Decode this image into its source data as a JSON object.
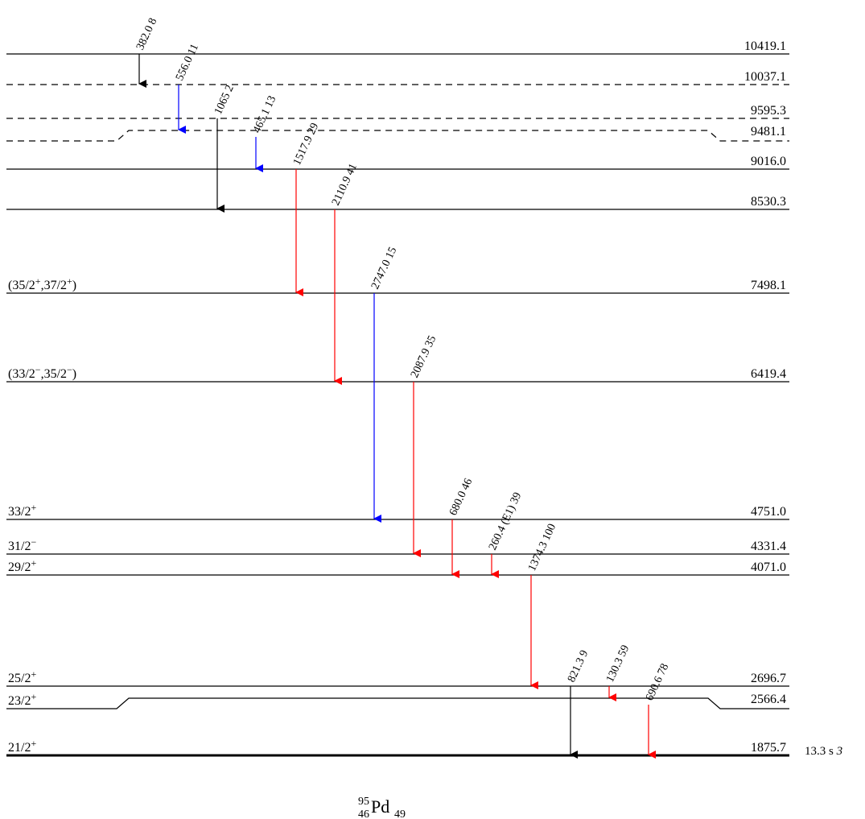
{
  "nucleus": {
    "mass": "95",
    "z": "46",
    "symbol": "Pd",
    "n": "49"
  },
  "levels": [
    {
      "energy": "10419.1",
      "spin": "",
      "style": "solid"
    },
    {
      "energy": "10037.1",
      "spin": "",
      "style": "dashed"
    },
    {
      "energy": "9595.3",
      "spin": "",
      "style": "dashed"
    },
    {
      "energy": "9481.1",
      "spin": "",
      "style": "dashed"
    },
    {
      "energy": "9016.0",
      "spin": "",
      "style": "solid"
    },
    {
      "energy": "8530.3",
      "spin": "",
      "style": "solid"
    },
    {
      "energy": "7498.1",
      "spin": "(35/2+,37/2+)",
      "style": "solid"
    },
    {
      "energy": "6419.4",
      "spin": "(33/2−,35/2−)",
      "style": "solid"
    },
    {
      "energy": "4751.0",
      "spin": "33/2+",
      "style": "solid"
    },
    {
      "energy": "4331.4",
      "spin": "31/2−",
      "style": "solid"
    },
    {
      "energy": "4071.0",
      "spin": "29/2+",
      "style": "solid"
    },
    {
      "energy": "2696.7",
      "spin": "25/2+",
      "style": "solid"
    },
    {
      "energy": "2566.4",
      "spin": "23/2+",
      "style": "solid"
    },
    {
      "energy": "1875.7",
      "spin": "21/2+",
      "style": "thick",
      "half_life": "13.3 s",
      "half_life_unc": "3"
    }
  ],
  "transitions": [
    {
      "energy": "382.0",
      "intensity": "8",
      "mult": "",
      "from": "10419.1",
      "to": "10037.1",
      "color": "#000000"
    },
    {
      "energy": "556.0",
      "intensity": "11",
      "mult": "",
      "from": "10037.1",
      "to": "9481.1",
      "color": "#0000ff"
    },
    {
      "energy": "1065",
      "intensity": "2",
      "mult": "",
      "from": "9595.3",
      "to": "8530.3",
      "color": "#000000"
    },
    {
      "energy": "465.1",
      "intensity": "13",
      "mult": "",
      "from": "9481.1",
      "to": "9016.0",
      "color": "#0000ff"
    },
    {
      "energy": "1517.9",
      "intensity": "29",
      "mult": "",
      "from": "9016.0",
      "to": "7498.1",
      "color": "#ff0000"
    },
    {
      "energy": "2110.9",
      "intensity": "41",
      "mult": "",
      "from": "8530.3",
      "to": "6419.4",
      "color": "#ff0000"
    },
    {
      "energy": "2747.0",
      "intensity": "15",
      "mult": "",
      "from": "7498.1",
      "to": "4751.0",
      "color": "#0000ff"
    },
    {
      "energy": "2087.9",
      "intensity": "35",
      "mult": "",
      "from": "6419.4",
      "to": "4331.4",
      "color": "#ff0000"
    },
    {
      "energy": "680.0",
      "intensity": "46",
      "mult": "",
      "from": "4751.0",
      "to": "4071.0",
      "color": "#ff0000"
    },
    {
      "energy": "260.4",
      "intensity": "39",
      "mult": "(E1)",
      "from": "4331.4",
      "to": "4071.0",
      "color": "#ff0000"
    },
    {
      "energy": "1374.3",
      "intensity": "100",
      "mult": "",
      "from": "4071.0",
      "to": "2696.7",
      "color": "#ff0000"
    },
    {
      "energy": "821.3",
      "intensity": "9",
      "mult": "",
      "from": "2696.7",
      "to": "1875.7",
      "color": "#000000"
    },
    {
      "energy": "130.3",
      "intensity": "59",
      "mult": "",
      "from": "2696.7",
      "to": "2566.4",
      "color": "#ff0000"
    },
    {
      "energy": "690.6",
      "intensity": "78",
      "mult": "",
      "from": "2566.4",
      "to": "1875.7",
      "color": "#ff0000"
    }
  ]
}
